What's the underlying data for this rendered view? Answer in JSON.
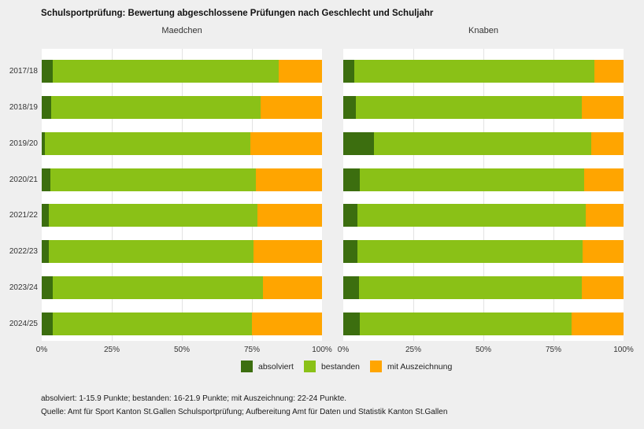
{
  "title": "Schulsportprüfung: Bewertung abgeschlossene Prüfungen nach Geschlecht und Schuljahr",
  "colors": {
    "background": "#efefef",
    "panel": "#ffffff",
    "gridline": "#e3e3e3",
    "title_text": "#111111",
    "axis_text": "#333333"
  },
  "chart_data": {
    "type": "bar",
    "orientation": "horizontal",
    "stacked": true,
    "unit": "percent",
    "title": "Schulsportprüfung: Bewertung abgeschlossene Prüfungen nach Geschlecht und Schuljahr",
    "categories": [
      "2017/18",
      "2018/19",
      "2019/20",
      "2020/21",
      "2021/22",
      "2022/23",
      "2023/24",
      "2024/25"
    ],
    "x_ticks": [
      "0%",
      "25%",
      "50%",
      "75%",
      "100%"
    ],
    "xlim": [
      0,
      100
    ],
    "grid": true,
    "legend": [
      "absolviert",
      "bestanden",
      "mit Auszeichnung"
    ],
    "legend_position": "bottom-center",
    "series_colors": [
      "#3c6e0f",
      "#8ac117",
      "#ffa500"
    ],
    "facets": [
      {
        "label": "Maedchen",
        "series": [
          {
            "name": "absolviert",
            "values": [
              4,
              3.5,
              1,
              3,
              2.5,
              2.5,
              4,
              4
            ]
          },
          {
            "name": "bestanden",
            "values": [
              80.5,
              74.5,
              73.5,
              73.5,
              74.5,
              73,
              75,
              71
            ]
          },
          {
            "name": "mit Auszeichnung",
            "values": [
              15.5,
              22,
              25.5,
              23.5,
              23,
              24.5,
              21,
              25
            ]
          }
        ]
      },
      {
        "label": "Knaben",
        "series": [
          {
            "name": "absolviert",
            "values": [
              4,
              4.5,
              11,
              6,
              5,
              5,
              5.5,
              6
            ]
          },
          {
            "name": "bestanden",
            "values": [
              85.5,
              80.5,
              77.5,
              80,
              81.5,
              80.5,
              79.5,
              75.5
            ]
          },
          {
            "name": "mit Auszeichnung",
            "values": [
              10.5,
              15,
              11.5,
              14,
              13.5,
              14.5,
              15,
              18.5
            ]
          }
        ]
      }
    ]
  },
  "footnotes": [
    "absolviert: 1-15.9 Punkte; bestanden: 16-21.9 Punkte; mit Auszeichnung: 22-24 Punkte.",
    "Quelle: Amt für Sport Kanton St.Gallen Schulsportprüfung; Aufbereitung Amt für Daten und Statistik Kanton St.Gallen"
  ]
}
